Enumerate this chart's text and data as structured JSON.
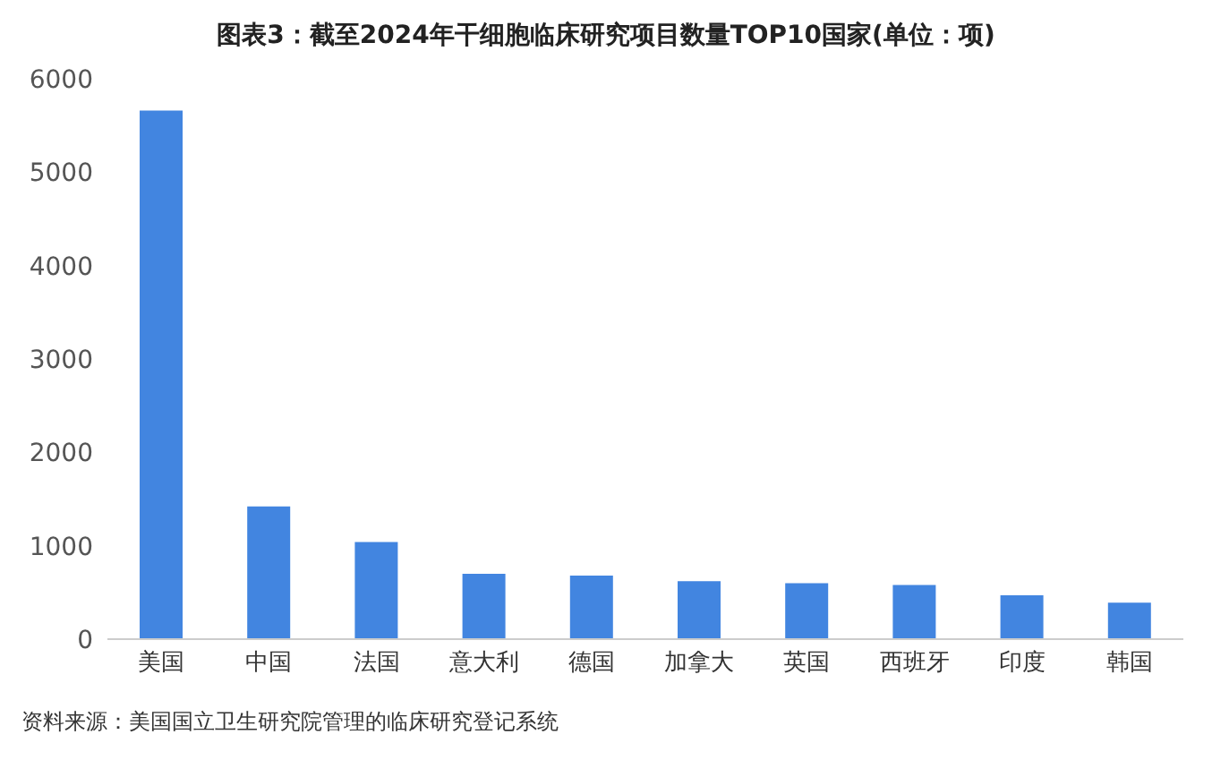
{
  "chart_data": {
    "type": "bar",
    "title": "图表3：截至2024年干细胞临床研究项目数量TOP10国家(单位：项)",
    "categories": [
      "美国",
      "中国",
      "法国",
      "意大利",
      "德国",
      "加拿大",
      "英国",
      "西班牙",
      "印度",
      "韩国"
    ],
    "values": [
      5660,
      1420,
      1040,
      700,
      680,
      620,
      600,
      580,
      470,
      390
    ],
    "color": "#4285e0",
    "ylim": [
      0,
      6000
    ],
    "yticks": [
      0,
      1000,
      2000,
      3000,
      4000,
      5000,
      6000
    ],
    "grid": false,
    "annotations": [
      "资料来源：美国国立卫生研究院管理的临床研究登记系统"
    ]
  }
}
